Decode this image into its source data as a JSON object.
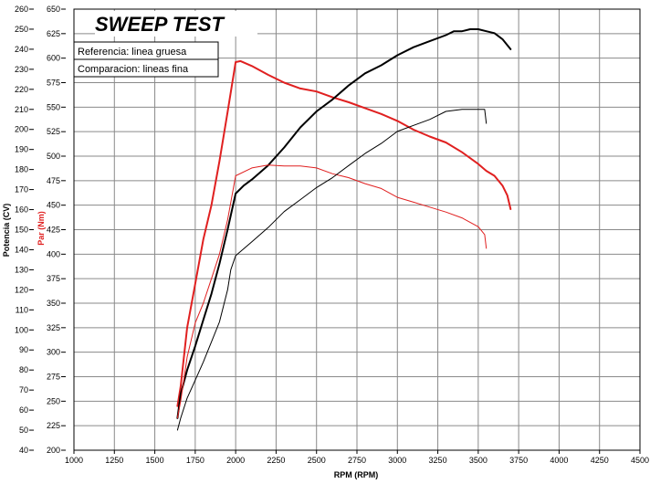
{
  "colors": {
    "torque": "#e02020",
    "power": "#000000",
    "grid": "#8a8a8a",
    "background": "#ffffff"
  },
  "chart_data": {
    "type": "line",
    "title": "SWEEP TEST",
    "xlabel": "RPM (RPM)",
    "ylabel_power": "Potencia (CV)",
    "ylabel_torque": "Par (Nm)",
    "xlim": [
      1000,
      4500
    ],
    "ylim_power": [
      40,
      260
    ],
    "ylim_torque": [
      200,
      650
    ],
    "x_ticks": [
      "1000",
      "1250",
      "1500",
      "1750",
      "2000",
      "2250",
      "2500",
      "2750",
      "3000",
      "3250",
      "3500",
      "3750",
      "4000",
      "4250",
      "4500"
    ],
    "power_ticks": [
      "40",
      "50",
      "60",
      "70",
      "80",
      "90",
      "100",
      "110",
      "120",
      "130",
      "140",
      "150",
      "160",
      "170",
      "180",
      "190",
      "200",
      "210",
      "220",
      "230",
      "240",
      "250",
      "260"
    ],
    "torque_ticks": [
      "200",
      "225",
      "250",
      "275",
      "300",
      "325",
      "350",
      "375",
      "400",
      "425",
      "450",
      "475",
      "500",
      "525",
      "550",
      "575",
      "600",
      "625",
      "650"
    ],
    "legend": [
      "Referencia: linea gruesa",
      "Comparacion: lineas fina"
    ],
    "series": [
      {
        "name": "Referencia - Par (Nm)",
        "axis": "torque",
        "color": "red",
        "width": "thick",
        "x": [
          1640,
          1660,
          1700,
          1750,
          1800,
          1850,
          1900,
          1950,
          2000,
          2030,
          2100,
          2200,
          2300,
          2400,
          2500,
          2600,
          2700,
          2800,
          2900,
          3000,
          3100,
          3200,
          3300,
          3400,
          3500,
          3550,
          3600,
          3650,
          3680,
          3700
        ],
        "y": [
          245,
          265,
          325,
          370,
          415,
          450,
          495,
          545,
          596,
          597,
          592,
          583,
          575,
          569,
          566,
          560,
          555,
          549,
          543,
          536,
          527,
          520,
          514,
          504,
          492,
          485,
          480,
          470,
          460,
          446
        ]
      },
      {
        "name": "Referencia - Potencia (CV)",
        "axis": "power",
        "color": "black",
        "width": "thick",
        "x": [
          1640,
          1660,
          1700,
          1750,
          1800,
          1850,
          1900,
          1950,
          2000,
          2050,
          2100,
          2200,
          2300,
          2400,
          2500,
          2600,
          2700,
          2800,
          2900,
          3000,
          3100,
          3200,
          3300,
          3350,
          3400,
          3450,
          3500,
          3550,
          3600,
          3650,
          3700
        ],
        "y": [
          56,
          68,
          80,
          92,
          105,
          118,
          133,
          150,
          168,
          172,
          175,
          182,
          191,
          201,
          209,
          215,
          222,
          228,
          232,
          237,
          241,
          244,
          247,
          249,
          249,
          250,
          250,
          249,
          248,
          245,
          240
        ]
      },
      {
        "name": "Comparacion - Par (Nm)",
        "axis": "torque",
        "color": "red",
        "width": "thin",
        "x": [
          1640,
          1660,
          1700,
          1750,
          1800,
          1850,
          1900,
          1950,
          2000,
          2100,
          2200,
          2300,
          2400,
          2500,
          2600,
          2700,
          2800,
          2900,
          3000,
          3100,
          3200,
          3300,
          3400,
          3500,
          3540,
          3550
        ],
        "y": [
          233,
          250,
          295,
          330,
          350,
          375,
          400,
          435,
          480,
          488,
          491,
          490,
          490,
          488,
          482,
          478,
          472,
          467,
          458,
          453,
          448,
          443,
          437,
          428,
          420,
          406
        ]
      },
      {
        "name": "Comparacion - Potencia (CV)",
        "axis": "power",
        "color": "black",
        "width": "thin",
        "x": [
          1640,
          1660,
          1700,
          1750,
          1800,
          1850,
          1900,
          1950,
          1970,
          2000,
          2100,
          2200,
          2300,
          2400,
          2500,
          2600,
          2700,
          2800,
          2900,
          3000,
          3100,
          3200,
          3300,
          3400,
          3450,
          3500,
          3540,
          3550
        ],
        "y": [
          50,
          56,
          66,
          75,
          84,
          94,
          104,
          120,
          130,
          137,
          144,
          151,
          159,
          165,
          171,
          176,
          182,
          188,
          193,
          199,
          202,
          205,
          209,
          210,
          210,
          210,
          210,
          203
        ]
      }
    ]
  }
}
